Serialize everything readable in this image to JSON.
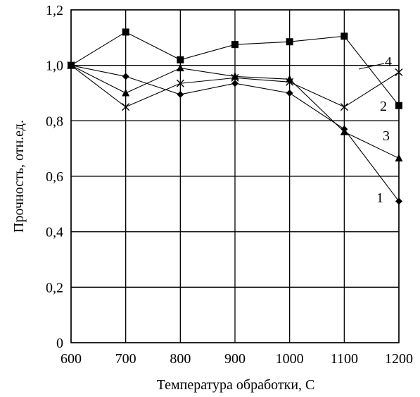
{
  "chart_data": {
    "type": "line",
    "xlabel": "Температура обработки, С",
    "ylabel": "Прочность, отн.ед.",
    "x": [
      600,
      700,
      800,
      900,
      1000,
      1100,
      1200
    ],
    "xlim": [
      600,
      1200
    ],
    "ylim": [
      0,
      1.2
    ],
    "x_tick_labels": [
      "600",
      "700",
      "800",
      "900",
      "1000",
      "1100",
      "1200"
    ],
    "y_ticks": [
      0,
      0.2,
      0.4,
      0.6,
      0.8,
      1.0,
      1.2
    ],
    "y_tick_labels": [
      "0",
      "0,2",
      "0,4",
      "0,6",
      "0,8",
      "1,0",
      "1,2"
    ],
    "grid": true,
    "series": [
      {
        "name": "1",
        "marker": "diamond",
        "values": [
          1.0,
          0.96,
          0.895,
          0.935,
          0.9,
          0.77,
          0.51
        ]
      },
      {
        "name": "2",
        "marker": "square",
        "values": [
          1.0,
          1.12,
          1.02,
          1.075,
          1.085,
          1.105,
          0.855
        ]
      },
      {
        "name": "3",
        "marker": "triangle",
        "values": [
          1.0,
          0.9,
          0.99,
          0.96,
          0.95,
          0.76,
          0.665
        ]
      },
      {
        "name": "4",
        "marker": "x",
        "values": [
          1.0,
          0.85,
          0.935,
          0.955,
          0.94,
          0.85,
          0.975
        ]
      }
    ]
  }
}
